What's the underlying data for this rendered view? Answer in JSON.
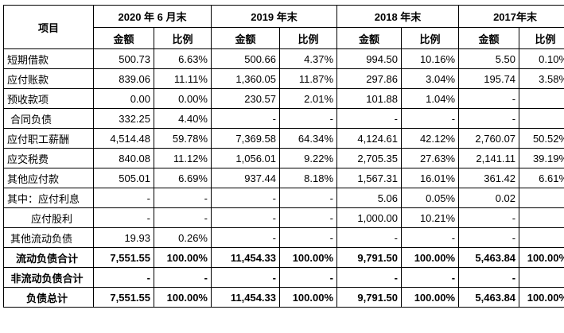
{
  "table": {
    "item_header": "项目",
    "periods": [
      "2020 年 6 月末",
      "2019 年末",
      "2018 年末",
      "2017年末"
    ],
    "amount_label": "金额",
    "ratio_label": "比例",
    "rows": [
      {
        "label": "短期借款",
        "cells": [
          "500.73",
          "6.63%",
          "500.66",
          "4.37%",
          "994.50",
          "10.16%",
          "5.50",
          "0.10%"
        ]
      },
      {
        "label": "应付账款",
        "cells": [
          "839.06",
          "11.11%",
          "1,360.05",
          "11.87%",
          "297.86",
          "3.04%",
          "195.74",
          "3.58%"
        ]
      },
      {
        "label": "预收款项",
        "cells": [
          "0.00",
          "0.00%",
          "230.57",
          "2.01%",
          "101.88",
          "1.04%",
          "-",
          "-"
        ]
      },
      {
        "label": "合同负债",
        "cells": [
          "332.25",
          "4.40%",
          "-",
          "-",
          "-",
          "-",
          "-",
          "-"
        ]
      },
      {
        "label": "应付职工薪酬",
        "cells": [
          "4,514.48",
          "59.78%",
          "7,369.58",
          "64.34%",
          "4,124.61",
          "42.12%",
          "2,760.07",
          "50.52%"
        ]
      },
      {
        "label": "应交税费",
        "cells": [
          "840.08",
          "11.12%",
          "1,056.01",
          "9.22%",
          "2,705.35",
          "27.63%",
          "2,141.11",
          "39.19%"
        ]
      },
      {
        "label": "其他应付款",
        "cells": [
          "505.01",
          "6.69%",
          "937.44",
          "8.18%",
          "1,567.31",
          "16.01%",
          "361.42",
          "6.61%"
        ]
      },
      {
        "label": "其中：应付利息",
        "cells": [
          "-",
          "-",
          "-",
          "-",
          "5.06",
          "0.05%",
          "0.02",
          "-"
        ]
      },
      {
        "label": "应付股利",
        "cells": [
          "-",
          "-",
          "-",
          "-",
          "1,000.00",
          "10.21%",
          "-",
          "-"
        ]
      },
      {
        "label": "其他流动负债",
        "cells": [
          "19.93",
          "0.26%",
          "-",
          "-",
          "-",
          "-",
          "-",
          "-"
        ]
      },
      {
        "label": "流动负债合计",
        "cells": [
          "7,551.55",
          "100.00%",
          "11,454.33",
          "100.00%",
          "9,791.50",
          "100.00%",
          "5,463.84",
          "100.00%"
        ]
      },
      {
        "label": "非流动负债合计",
        "cells": [
          "-",
          "-",
          "-",
          "-",
          "-",
          "-",
          "-",
          "-"
        ]
      },
      {
        "label": "负债总计",
        "cells": [
          "7,551.55",
          "100.00%",
          "11,454.33",
          "100.00%",
          "9,791.50",
          "100.00%",
          "5,463.84",
          "100.00%"
        ]
      }
    ]
  }
}
